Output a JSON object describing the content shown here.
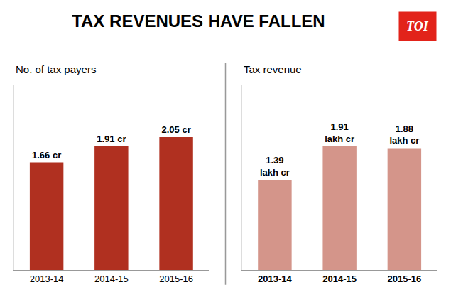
{
  "chart_data": [
    {
      "type": "bar",
      "title": "TAX REVENUES HAVE FALLEN",
      "subtitle": "No. of tax payers",
      "categories": [
        "2013-14",
        "2014-15",
        "2015-16"
      ],
      "values": [
        1.66,
        1.91,
        2.05
      ],
      "value_labels": [
        "1.66 cr",
        "1.91 cr",
        "2.05 cr"
      ],
      "color": "#b03020",
      "ylim": [
        0,
        2.85
      ],
      "grid": false,
      "data_labels": true,
      "tick_labels": "x"
    },
    {
      "type": "bar",
      "subtitle": "Tax revenue",
      "categories": [
        "2013-14",
        "2014-15",
        "2015-16"
      ],
      "values": [
        1.39,
        1.91,
        1.88
      ],
      "value_labels": [
        "1.39\nlakh cr",
        "1.91\nlakh cr",
        "1.88\nlakh cr"
      ],
      "color": "#d4958a",
      "ylim": [
        0,
        2.85
      ],
      "grid": false,
      "data_labels": true,
      "tick_labels": "x",
      "annotations": [
        {
          "text": "TOI",
          "color": "#e2231a"
        }
      ]
    }
  ]
}
